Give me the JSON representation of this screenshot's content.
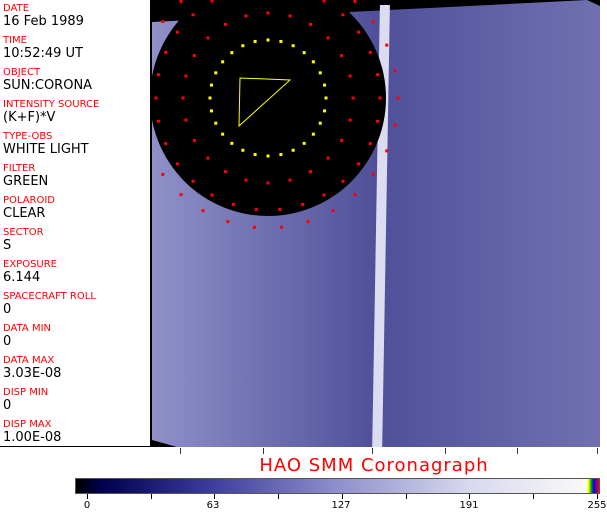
{
  "fields": [
    {
      "label": "DATE",
      "value": "16 Feb 1989"
    },
    {
      "label": "TIME",
      "value": "10:52:49 UT"
    },
    {
      "label": "OBJECT",
      "value": "SUN:CORONA"
    },
    {
      "label": "INTENSITY SOURCE",
      "value": "(K+F)*V"
    },
    {
      "label": "TYPE-OBS",
      "value": "WHITE LIGHT"
    },
    {
      "label": "FILTER",
      "value": "GREEN"
    },
    {
      "label": "POLAROID",
      "value": "CLEAR"
    },
    {
      "label": "SECTOR",
      "value": "S"
    },
    {
      "label": "EXPOSURE",
      "value": "6.144"
    },
    {
      "label": "SPACECRAFT ROLL",
      "value": "0"
    },
    {
      "label": "DATA MIN",
      "value": "0"
    },
    {
      "label": "DATA MAX",
      "value": "3.03E-08"
    },
    {
      "label": "DISP MIN",
      "value": "0"
    },
    {
      "label": "DISP MAX",
      "value": "1.00E-08"
    }
  ],
  "title": "HAO  SMM Coronagraph",
  "colorbar": {
    "ticks": [
      "0",
      "63",
      "127",
      "191",
      "255"
    ],
    "range": [
      0,
      255
    ]
  },
  "colors": {
    "label": "#ff0000",
    "image_tint": "#5a5aa8"
  }
}
